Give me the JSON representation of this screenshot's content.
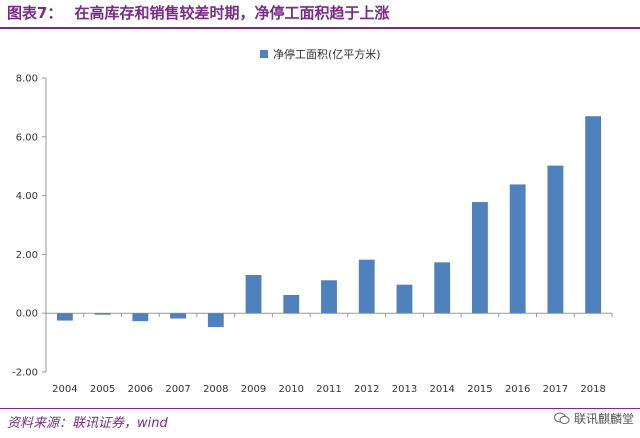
{
  "header": {
    "figure_number": "图表7：",
    "title": "在高库存和销售较差时期，净停工面积趋于上涨"
  },
  "footer": {
    "source": "资料来源：联讯证券，wind",
    "watermark": "联讯麒麟堂",
    "watermark_icon": "wechat-icon"
  },
  "colors": {
    "accent": "#7a2a8a",
    "bar": "#4f81bd"
  },
  "chart_data": {
    "type": "bar",
    "categories": [
      "2004",
      "2005",
      "2006",
      "2007",
      "2008",
      "2009",
      "2010",
      "2011",
      "2012",
      "2013",
      "2014",
      "2015",
      "2016",
      "2017",
      "2018"
    ],
    "series": [
      {
        "name": "净停工面积(亿平方米)",
        "values": [
          -0.25,
          -0.05,
          -0.27,
          -0.18,
          -0.47,
          1.3,
          0.62,
          1.12,
          1.82,
          0.97,
          1.73,
          3.78,
          4.38,
          5.02,
          6.7
        ]
      }
    ],
    "ylim": [
      -2.0,
      8.0
    ],
    "yticks": [
      "-2.00",
      "0.00",
      "2.00",
      "4.00",
      "6.00",
      "8.00"
    ],
    "ytick_values": [
      -2,
      0,
      2,
      4,
      6,
      8
    ],
    "grid": false,
    "legend": "top-center"
  }
}
